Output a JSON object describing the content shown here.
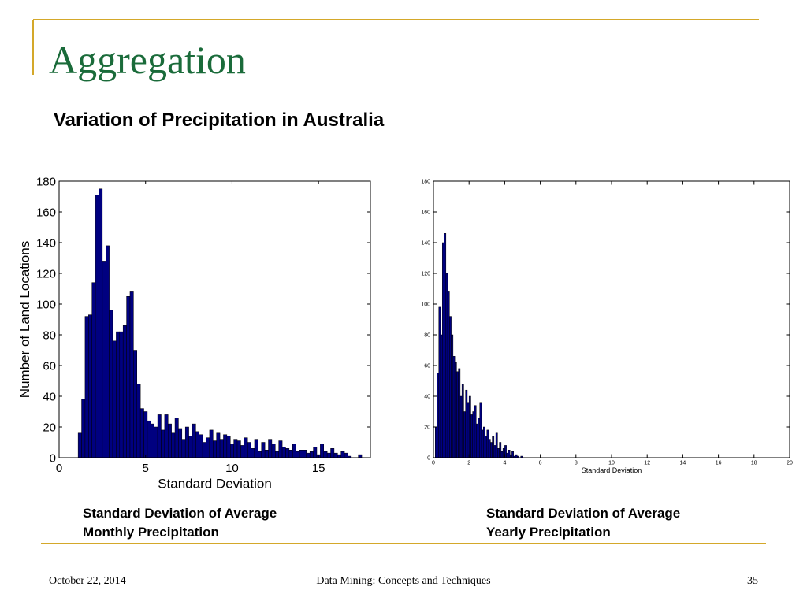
{
  "slide": {
    "title": "Aggregation",
    "subtitle": "Variation of Precipitation in Australia",
    "footer": {
      "date": "October 22, 2014",
      "center": "Data Mining: Concepts and Techniques",
      "page": 35
    }
  },
  "chart_data": [
    {
      "type": "histogram",
      "xlabel": "Standard Deviation",
      "ylabel": "Number of Land Locations",
      "color": "#000080",
      "caption": [
        "Standard Deviation of Average",
        "Monthly Precipitation"
      ],
      "xlim": [
        0,
        18
      ],
      "ylim": [
        0,
        180
      ],
      "xticks": [
        0,
        5,
        10,
        15
      ],
      "yticks": [
        0,
        20,
        40,
        60,
        80,
        100,
        120,
        140,
        160,
        180
      ],
      "bins": [
        1.1,
        1.3,
        1.5,
        1.7,
        1.9,
        2.1,
        2.3,
        2.5,
        2.7,
        2.9,
        3.1,
        3.3,
        3.5,
        3.7,
        3.9,
        4.1,
        4.3,
        4.5,
        4.7,
        4.9,
        5.1,
        5.3,
        5.5,
        5.7,
        5.9,
        6.1,
        6.3,
        6.5,
        6.7,
        6.9,
        7.1,
        7.3,
        7.5,
        7.7,
        7.9,
        8.1,
        8.3,
        8.5,
        8.7,
        8.9,
        9.1,
        9.3,
        9.5,
        9.7,
        9.9,
        10.1,
        10.3,
        10.5,
        10.7,
        10.9,
        11.1,
        11.3,
        11.5,
        11.7,
        11.9,
        12.1,
        12.3,
        12.5,
        12.7,
        12.9,
        13.1,
        13.3,
        13.5,
        13.7,
        13.9,
        14.1,
        14.3,
        14.5,
        14.7,
        14.9,
        15.1,
        15.3,
        15.5,
        15.7,
        15.9,
        16.1,
        16.3,
        16.5,
        16.7,
        16.9,
        17.1,
        17.3,
        17.5
      ],
      "counts": [
        16,
        38,
        92,
        93,
        114,
        171,
        175,
        128,
        138,
        96,
        76,
        82,
        82,
        86,
        105,
        108,
        70,
        48,
        32,
        30,
        24,
        22,
        20,
        28,
        18,
        28,
        22,
        16,
        26,
        19,
        12,
        20,
        14,
        22,
        17,
        15,
        10,
        13,
        18,
        11,
        16,
        12,
        15,
        14,
        9,
        12,
        11,
        8,
        13,
        10,
        6,
        12,
        4,
        10,
        5,
        12,
        9,
        4,
        11,
        7,
        6,
        5,
        9,
        4,
        5,
        5,
        3,
        4,
        7,
        2,
        9,
        4,
        3,
        6,
        3,
        2,
        4,
        3,
        1,
        0,
        0,
        2
      ]
    },
    {
      "type": "histogram",
      "xlabel": "Standard Deviation",
      "color": "#000080",
      "caption": [
        "Standard Deviation of Average",
        "Yearly Precipitation"
      ],
      "xlim": [
        0,
        20
      ],
      "ylim": [
        0,
        180
      ],
      "xticks": [
        0,
        2,
        4,
        6,
        8,
        10,
        12,
        14,
        16,
        18,
        20
      ],
      "yticks": [
        0,
        20,
        40,
        60,
        80,
        100,
        120,
        140,
        160,
        180
      ],
      "bins": [
        0.1,
        0.2,
        0.3,
        0.4,
        0.5,
        0.6,
        0.7,
        0.8,
        0.9,
        1.0,
        1.1,
        1.2,
        1.3,
        1.4,
        1.5,
        1.6,
        1.7,
        1.8,
        1.9,
        2.0,
        2.1,
        2.2,
        2.3,
        2.4,
        2.5,
        2.6,
        2.7,
        2.8,
        2.9,
        3.0,
        3.1,
        3.2,
        3.3,
        3.4,
        3.5,
        3.6,
        3.7,
        3.8,
        3.9,
        4.0,
        4.1,
        4.2,
        4.3,
        4.4,
        4.5,
        4.6,
        4.7,
        4.8,
        4.9,
        5.0
      ],
      "counts": [
        20,
        55,
        98,
        80,
        140,
        146,
        120,
        108,
        92,
        80,
        66,
        62,
        56,
        58,
        40,
        48,
        30,
        44,
        36,
        40,
        28,
        30,
        34,
        22,
        26,
        36,
        18,
        20,
        14,
        18,
        12,
        10,
        14,
        8,
        16,
        6,
        10,
        4,
        6,
        8,
        3,
        5,
        2,
        4,
        1,
        2,
        1,
        0,
        1
      ]
    }
  ]
}
